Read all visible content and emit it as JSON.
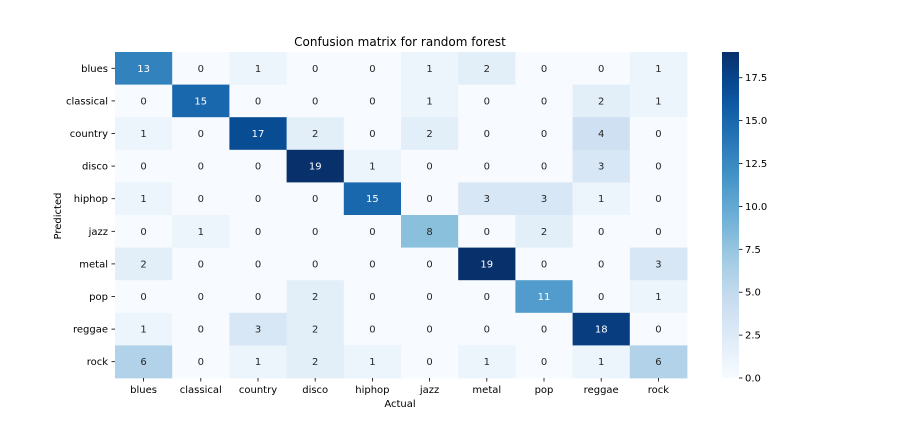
{
  "chart_data": {
    "type": "heatmap",
    "title": "Confusion matrix for random forest",
    "xlabel": "Actual",
    "ylabel": "Predicted",
    "x_categories": [
      "blues",
      "classical",
      "country",
      "disco",
      "hiphop",
      "jazz",
      "metal",
      "pop",
      "reggae",
      "rock"
    ],
    "y_categories": [
      "blues",
      "classical",
      "country",
      "disco",
      "hiphop",
      "jazz",
      "metal",
      "pop",
      "reggae",
      "rock"
    ],
    "values": [
      [
        13,
        0,
        1,
        0,
        0,
        1,
        2,
        0,
        0,
        1
      ],
      [
        0,
        15,
        0,
        0,
        0,
        1,
        0,
        0,
        2,
        1
      ],
      [
        1,
        0,
        17,
        2,
        0,
        2,
        0,
        0,
        4,
        0
      ],
      [
        0,
        0,
        0,
        19,
        1,
        0,
        0,
        0,
        3,
        0
      ],
      [
        1,
        0,
        0,
        0,
        15,
        0,
        3,
        3,
        1,
        0
      ],
      [
        0,
        1,
        0,
        0,
        0,
        8,
        0,
        2,
        0,
        0
      ],
      [
        2,
        0,
        0,
        0,
        0,
        0,
        19,
        0,
        0,
        3
      ],
      [
        0,
        0,
        0,
        2,
        0,
        0,
        0,
        11,
        0,
        1
      ],
      [
        1,
        0,
        3,
        2,
        0,
        0,
        0,
        0,
        18,
        0
      ],
      [
        6,
        0,
        1,
        2,
        1,
        0,
        1,
        0,
        1,
        6
      ]
    ],
    "colormap": "Blues",
    "colorbar": {
      "range": [
        0,
        19
      ],
      "ticks": [
        0.0,
        2.5,
        5.0,
        7.5,
        10.0,
        12.5,
        15.0,
        17.5
      ],
      "tick_labels": [
        "0.0",
        "2.5",
        "5.0",
        "7.5",
        "10.0",
        "12.5",
        "15.0",
        "17.5"
      ]
    },
    "annotate_cells": true,
    "grid": false
  }
}
